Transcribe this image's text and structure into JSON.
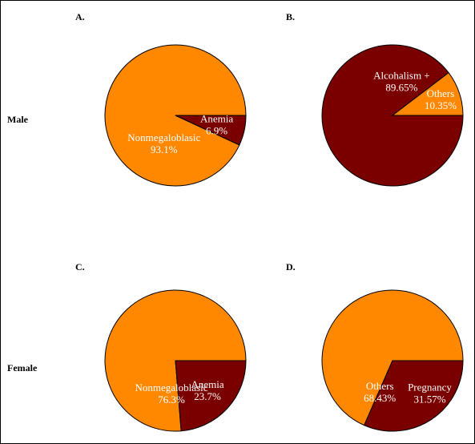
{
  "row_labels": {
    "male": "Male",
    "female": "Female"
  },
  "colors": {
    "dark": "#7a0000",
    "orange": "#ff8800",
    "outline": "#000000"
  },
  "chart_data": [
    {
      "type": "pie",
      "panel": "A.",
      "row": "Male",
      "slices": [
        {
          "label": "Anemia",
          "value": 6.9,
          "display": "6.9%",
          "color": "#7a0000"
        },
        {
          "label": "Nonmegaloblasic",
          "value": 93.1,
          "display": "93.1%",
          "color": "#ff8800"
        }
      ]
    },
    {
      "type": "pie",
      "panel": "B.",
      "row": "Male",
      "slices": [
        {
          "label": "Others",
          "value": 10.35,
          "display": "10.35%",
          "color": "#ff8800"
        },
        {
          "label": "Alcohalism +",
          "value": 89.65,
          "display": "89.65%",
          "color": "#7a0000"
        }
      ]
    },
    {
      "type": "pie",
      "panel": "C.",
      "row": "Female",
      "slices": [
        {
          "label": "Anemia",
          "value": 23.7,
          "display": "23.7%",
          "color": "#7a0000"
        },
        {
          "label": "Nonmegaloblasic",
          "value": 76.3,
          "display": "76.3%",
          "color": "#ff8800"
        }
      ]
    },
    {
      "type": "pie",
      "panel": "D.",
      "row": "Female",
      "slices": [
        {
          "label": "Pregnancy",
          "value": 31.57,
          "display": "31.57%",
          "color": "#7a0000"
        },
        {
          "label": "Others",
          "value": 68.43,
          "display": "68.43%",
          "color": "#ff8800"
        }
      ]
    }
  ]
}
